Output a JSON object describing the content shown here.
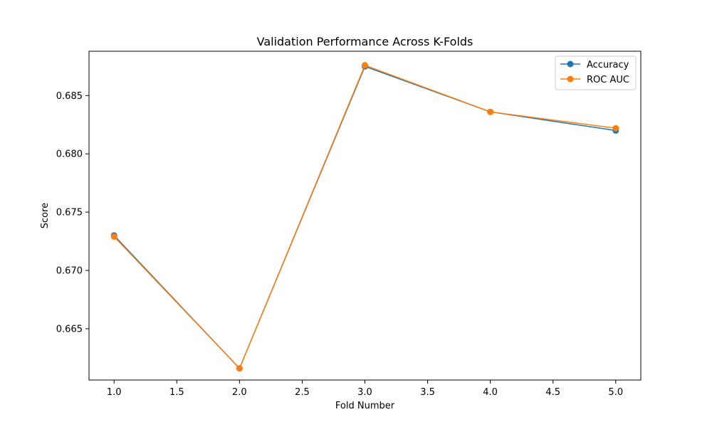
{
  "chart_data": {
    "type": "line",
    "title": "Validation Performance Across K-Folds",
    "xlabel": "Fold Number",
    "ylabel": "Score",
    "x": [
      1,
      2,
      3,
      4,
      5
    ],
    "xlim": [
      0.8,
      5.2
    ],
    "ylim": [
      0.6606,
      0.6888
    ],
    "xticks": [
      1.0,
      1.5,
      2.0,
      2.5,
      3.0,
      3.5,
      4.0,
      4.5,
      5.0
    ],
    "xtick_labels": [
      "1.0",
      "1.5",
      "2.0",
      "2.5",
      "3.0",
      "3.5",
      "4.0",
      "4.5",
      "5.0"
    ],
    "yticks": [
      0.665,
      0.67,
      0.675,
      0.68,
      0.685
    ],
    "ytick_labels": [
      "0.665",
      "0.670",
      "0.675",
      "0.680",
      "0.685"
    ],
    "grid": false,
    "legend_position": "top-right",
    "series": [
      {
        "name": "Accuracy",
        "color": "#1f77b4",
        "marker": "circle",
        "values": [
          0.673,
          0.6616,
          0.6875,
          0.6836,
          0.682
        ]
      },
      {
        "name": "ROC AUC",
        "color": "#ff7f0e",
        "marker": "circle",
        "values": [
          0.6729,
          0.6616,
          0.6876,
          0.6836,
          0.6822
        ]
      }
    ]
  }
}
